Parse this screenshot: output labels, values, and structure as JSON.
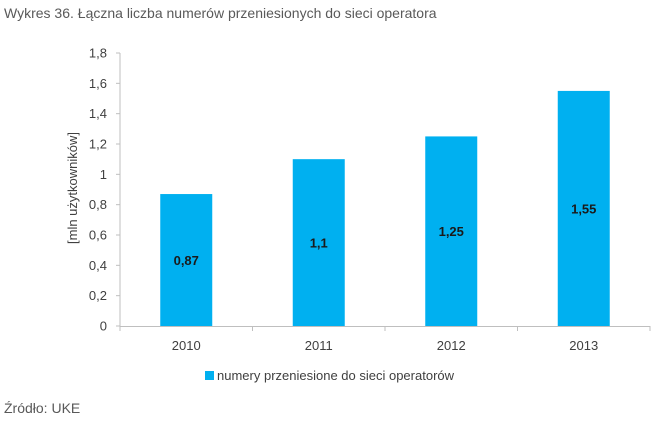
{
  "title": "Wykres 36. Łączna liczba numerów przeniesionych do sieci operatora",
  "source": "Źródło: UKE",
  "chart_data": {
    "type": "bar",
    "categories": [
      "2010",
      "2011",
      "2012",
      "2013"
    ],
    "series": [
      {
        "name": "numery przeniesione do sieci operatorów",
        "values": [
          0.87,
          1.1,
          1.25,
          1.55
        ],
        "labels": [
          "0,87",
          "1,1",
          "1,25",
          "1,55"
        ],
        "color": "#00B0F0"
      }
    ],
    "title": "Wykres 36. Łączna liczba numerów przeniesionych do sieci operatora",
    "xlabel": "",
    "ylabel": "[mln użytkowników]",
    "ylim": [
      0,
      1.8
    ],
    "yticks": [
      0,
      0.2,
      0.4,
      0.6,
      0.8,
      1,
      1.2,
      1.4,
      1.6,
      1.8
    ],
    "ytick_labels": [
      "0",
      "0,2",
      "0,4",
      "0,6",
      "0,8",
      "1",
      "1,2",
      "1,4",
      "1,6",
      "1,8"
    ],
    "grid": false,
    "legend_position": "bottom"
  }
}
